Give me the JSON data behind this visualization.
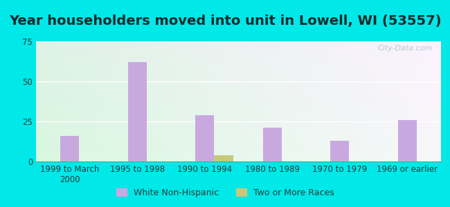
{
  "title": "Year householders moved into unit in Lowell, WI (53557)",
  "categories": [
    "1999 to March\n2000",
    "1995 to 1998",
    "1990 to 1994",
    "1980 to 1989",
    "1970 to 1979",
    "1969 or earlier"
  ],
  "white_values": [
    16,
    62,
    29,
    21,
    13,
    26
  ],
  "two_or_more_values": [
    0,
    0,
    4,
    0,
    0,
    0
  ],
  "white_color": "#c9a8e0",
  "two_or_more_color": "#c8c87a",
  "ylim": [
    0,
    75
  ],
  "yticks": [
    0,
    25,
    50,
    75
  ],
  "background_outer": "#00e8e8",
  "title_fontsize": 14,
  "legend_labels": [
    "White Non-Hispanic",
    "Two or More Races"
  ],
  "bar_width": 0.28,
  "grid_color": "#ffffff",
  "tick_fontsize": 8.5,
  "watermark": "City-Data.com"
}
